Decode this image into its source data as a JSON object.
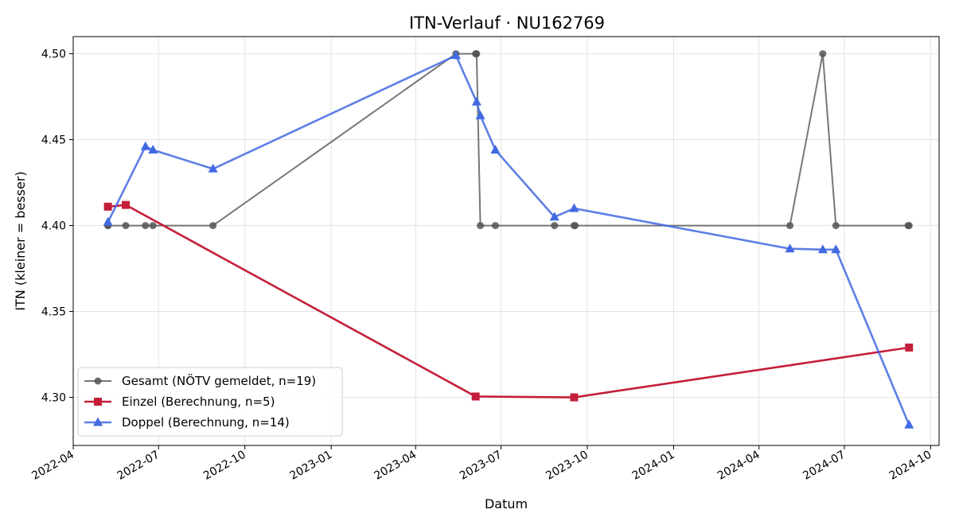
{
  "chart_data": {
    "type": "line",
    "title": "ITN-Verlauf · NU162769",
    "xlabel": "Datum",
    "ylabel": "ITN  (kleiner = besser)",
    "xlim": [
      "2022-04-01",
      "2024-10-10"
    ],
    "ylim": [
      4.272,
      4.51
    ],
    "x_ticks": [
      "2022-04",
      "2022-07",
      "2022-10",
      "2023-01",
      "2023-04",
      "2023-07",
      "2023-10",
      "2024-01",
      "2024-04",
      "2024-07",
      "2024-10"
    ],
    "y_ticks": [
      "4.30",
      "4.35",
      "4.40",
      "4.45",
      "4.50"
    ],
    "grid": true,
    "legend_position": "lower-left",
    "series": [
      {
        "name": "Gesamt (NÖTV gemeldet, n=19)",
        "color": "#555555",
        "marker": "circle",
        "points": [
          [
            "2022-05-08",
            4.4
          ],
          [
            "2022-05-08",
            4.4
          ],
          [
            "2022-05-27",
            4.4
          ],
          [
            "2022-06-17",
            4.4
          ],
          [
            "2022-06-25",
            4.4
          ],
          [
            "2022-08-28",
            4.4
          ],
          [
            "2023-05-14",
            4.5
          ],
          [
            "2023-06-04",
            4.5
          ],
          [
            "2023-06-05",
            4.5
          ],
          [
            "2023-06-09",
            4.4
          ],
          [
            "2023-06-25",
            4.4
          ],
          [
            "2023-08-27",
            4.4
          ],
          [
            "2023-09-17",
            4.4
          ],
          [
            "2023-09-18",
            4.4
          ],
          [
            "2024-05-04",
            4.4
          ],
          [
            "2024-06-08",
            4.5
          ],
          [
            "2024-06-22",
            4.4
          ],
          [
            "2024-09-07",
            4.4
          ],
          [
            "2024-09-08",
            4.4
          ]
        ]
      },
      {
        "name": "Einzel (Berechnung, n=5)",
        "color": "#c41e3a",
        "marker": "square",
        "points": [
          [
            "2022-05-08",
            4.411
          ],
          [
            "2022-05-27",
            4.412
          ],
          [
            "2023-06-04",
            4.3005
          ],
          [
            "2023-09-17",
            4.3
          ],
          [
            "2024-09-08",
            4.329
          ]
        ]
      },
      {
        "name": "Doppel (Berechnung, n=14)",
        "color": "#4169e1",
        "marker": "triangle",
        "points": [
          [
            "2022-05-08",
            4.402
          ],
          [
            "2022-06-17",
            4.446
          ],
          [
            "2022-06-25",
            4.444
          ],
          [
            "2022-08-28",
            4.433
          ],
          [
            "2023-05-14",
            4.499
          ],
          [
            "2023-06-05",
            4.472
          ],
          [
            "2023-06-09",
            4.464
          ],
          [
            "2023-06-25",
            4.444
          ],
          [
            "2023-08-27",
            4.405
          ],
          [
            "2023-09-17",
            4.41
          ],
          [
            "2024-05-04",
            4.3865
          ],
          [
            "2024-06-08",
            4.386
          ],
          [
            "2024-06-22",
            4.386
          ],
          [
            "2024-09-08",
            4.284
          ]
        ]
      }
    ]
  }
}
